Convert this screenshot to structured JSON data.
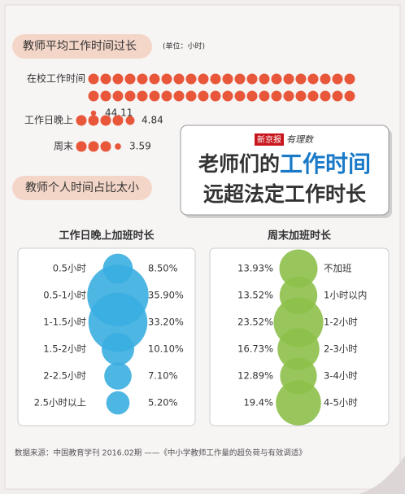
{
  "headline": {
    "logo": "新京报",
    "logo_sub": "有理数",
    "line1_a": "老师们的",
    "line1_b": "工作时间",
    "line2": "远超法定工作时长"
  },
  "section2": "教师个人时间占比太小",
  "source": "数据来源：中国教育学刊 2016.02期 ——《中小学教师工作量的超负荷与有效调适》",
  "chart_data": [
    {
      "type": "dot-bar",
      "title": "教师平均工作时间过长",
      "subtitle": "(单位：小时)",
      "categories": [
        "在校工作时间",
        "工作日晚上",
        "周末"
      ],
      "values": [
        44.11,
        4.84,
        3.59
      ],
      "color": "#e8573a"
    },
    {
      "type": "bubble",
      "title": "工作日晚上加班时长",
      "categories": [
        "0.5小时",
        "0.5-1小时",
        "1-1.5小时",
        "1.5-2小时",
        "2-2.5小时",
        "2.5小时以上"
      ],
      "values": [
        8.5,
        35.9,
        33.2,
        10.1,
        7.1,
        5.2
      ],
      "value_labels": [
        "8.50%",
        "35.90%",
        "33.20%",
        "10.10%",
        "7.10%",
        "5.20%"
      ],
      "color": "#3aaee0"
    },
    {
      "type": "bubble",
      "title": "周末加班时长",
      "categories": [
        "不加班",
        "1小时以内",
        "1-2小时",
        "2-3小时",
        "3-4小时",
        "4-5小时"
      ],
      "values": [
        13.93,
        13.52,
        23.52,
        16.73,
        12.89,
        19.4
      ],
      "value_labels": [
        "13.93%",
        "13.52%",
        "23.52%",
        "16.73%",
        "12.89%",
        "19.4%"
      ],
      "color": "#8dc04a"
    }
  ]
}
